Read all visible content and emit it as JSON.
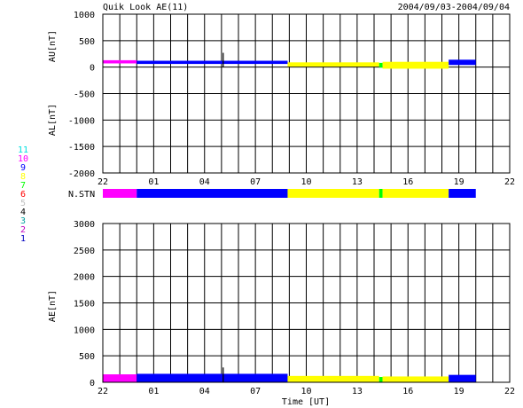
{
  "header": {
    "title": "Quik Look AE(11)",
    "date_range": "2004/09/03-2004/09/04"
  },
  "station_legend": {
    "numbers": [
      "11",
      "10",
      "9",
      "8",
      "7",
      "6",
      "5",
      "4",
      "3",
      "2",
      "1"
    ],
    "colors": [
      "#00e0e0",
      "#ff00ff",
      "#0000ff",
      "#ffff00",
      "#00ff00",
      "#ff0000",
      "#c0c0c0",
      "#000000",
      "#00a0a0",
      "#c000c0",
      "#0000c0"
    ]
  },
  "nstn_label": "N.STN",
  "xlabel": "Time [UT]",
  "chart_data": [
    {
      "type": "line",
      "name": "AU/AL",
      "ylabel_top": "AU[nT]",
      "ylabel_bottom": "AL[nT]",
      "ylim": [
        -2000,
        1000
      ],
      "yticks": [
        1000,
        500,
        0,
        -500,
        -1000,
        -1500,
        -2000
      ],
      "xlim_hours": [
        22,
        46
      ],
      "xtick_labels": [
        "22",
        "01",
        "04",
        "07",
        "10",
        "13",
        "16",
        "19",
        "22"
      ],
      "grid": true,
      "segments": [
        {
          "from": 22.0,
          "to": 24.0,
          "color": "#ff00ff",
          "upper": 130,
          "lower": 70
        },
        {
          "from": 24.0,
          "to": 32.9,
          "color": "#0000ff",
          "upper": 120,
          "lower": 60
        },
        {
          "from": 32.9,
          "to": 38.3,
          "color": "#ffff00",
          "upper": 90,
          "lower": 10
        },
        {
          "from": 38.3,
          "to": 38.5,
          "color": "#00ff00",
          "upper": 80,
          "lower": -10
        },
        {
          "from": 38.5,
          "to": 42.4,
          "color": "#ffff00",
          "upper": 100,
          "lower": -30
        },
        {
          "from": 42.4,
          "to": 44.0,
          "color": "#0000ff",
          "upper": 140,
          "lower": 40
        }
      ],
      "spikes": [
        {
          "x": 29.1,
          "y": 270
        }
      ]
    },
    {
      "type": "bar",
      "name": "N.STN",
      "segments": [
        {
          "from": 22.0,
          "to": 24.0,
          "color": "#ff00ff"
        },
        {
          "from": 24.0,
          "to": 32.9,
          "color": "#0000ff"
        },
        {
          "from": 32.9,
          "to": 38.3,
          "color": "#ffff00"
        },
        {
          "from": 38.3,
          "to": 38.5,
          "color": "#00ff00"
        },
        {
          "from": 38.5,
          "to": 42.4,
          "color": "#ffff00"
        },
        {
          "from": 42.4,
          "to": 44.0,
          "color": "#0000ff"
        }
      ]
    },
    {
      "type": "area",
      "name": "AE",
      "ylabel": "AE[nT]",
      "ylim": [
        0,
        3000
      ],
      "yticks": [
        3000,
        2500,
        2000,
        1500,
        1000,
        500,
        0
      ],
      "xlim_hours": [
        22,
        46
      ],
      "xtick_labels": [
        "22",
        "01",
        "04",
        "07",
        "10",
        "13",
        "16",
        "19",
        "22"
      ],
      "grid": true,
      "segments": [
        {
          "from": 22.0,
          "to": 24.0,
          "color": "#ff00ff",
          "value": 150
        },
        {
          "from": 24.0,
          "to": 32.9,
          "color": "#0000ff",
          "value": 160
        },
        {
          "from": 32.9,
          "to": 38.3,
          "color": "#ffff00",
          "value": 120
        },
        {
          "from": 38.3,
          "to": 38.5,
          "color": "#00ff00",
          "value": 100
        },
        {
          "from": 38.5,
          "to": 42.4,
          "color": "#ffff00",
          "value": 110
        },
        {
          "from": 42.4,
          "to": 44.0,
          "color": "#0000ff",
          "value": 140
        }
      ],
      "spikes": [
        {
          "x": 29.1,
          "y": 280
        }
      ]
    }
  ]
}
